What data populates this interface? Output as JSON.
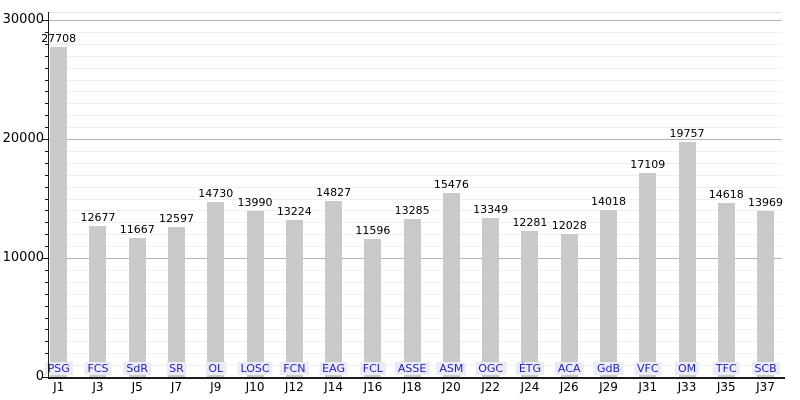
{
  "chart_data": {
    "type": "bar",
    "title": "",
    "categories": [
      "J1",
      "J3",
      "J5",
      "J7",
      "J9",
      "J10",
      "J12",
      "J14",
      "J16",
      "J18",
      "J20",
      "J22",
      "J24",
      "J26",
      "J29",
      "J31",
      "J33",
      "J35",
      "J37"
    ],
    "bar_labels": [
      "PSG",
      "FCS",
      "SdR",
      "SR",
      "OL",
      "LOSC",
      "FCN",
      "EAG",
      "FCL",
      "ASSE",
      "ASM",
      "OGC",
      "ÉTG",
      "ACA",
      "GdB",
      "VFC",
      "OM",
      "TFC",
      "SCB"
    ],
    "values": [
      27708,
      12677,
      11667,
      12597,
      14730,
      13990,
      13224,
      14827,
      11596,
      13285,
      15476,
      13349,
      12281,
      12028,
      14018,
      17109,
      19757,
      14618,
      13969
    ],
    "xlabel": "",
    "ylabel": "",
    "ylim": [
      0,
      30000
    ],
    "yticks": [
      0,
      10000,
      20000,
      30000
    ],
    "ytick_labels": [
      "0",
      "10000",
      "20000",
      "30000"
    ],
    "minor_grid_step": 1000,
    "grid": "on",
    "legend_position": "none",
    "colors": {
      "bar": "#c9c9c9",
      "value_label": "#000000",
      "club_label_text": "#2222bb",
      "club_label_bg": "#ebebf7",
      "grid_major": "#b3b3b3",
      "grid_minor": "#efefef",
      "plot_top_border": "#e3e3e3",
      "axis": "#1a1a1a",
      "background": "#ffffff"
    }
  }
}
